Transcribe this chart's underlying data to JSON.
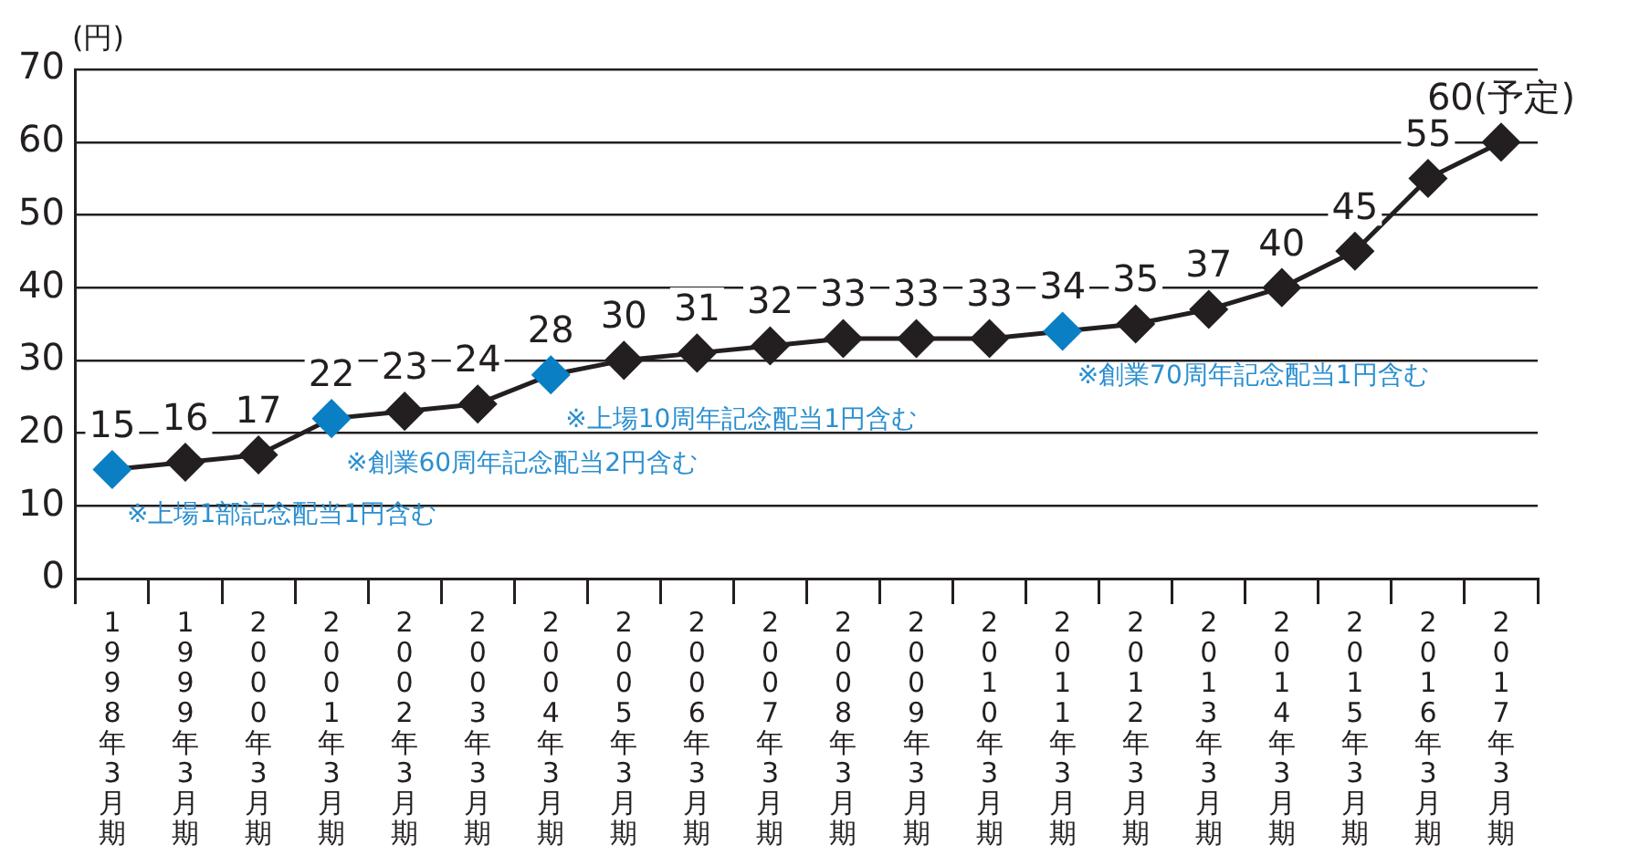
{
  "chart_data": {
    "type": "line",
    "ylabel": "(円)",
    "categories": [
      "1998年3月期",
      "1999年3月期",
      "2000年3月期",
      "2001年3月期",
      "2002年3月期",
      "2003年3月期",
      "2004年3月期",
      "2005年3月期",
      "2006年3月期",
      "2007年3月期",
      "2008年3月期",
      "2009年3月期",
      "2010年3月期",
      "2011年3月期",
      "2012年3月期",
      "2013年3月期",
      "2014年3月期",
      "2015年3月期",
      "2016年3月期",
      "2017年3月期"
    ],
    "series": [
      {
        "color": "#231f20",
        "colors": [
          "#0a7fc4",
          "#231f20",
          "#231f20",
          "#0a7fc4",
          "#231f20",
          "#231f20",
          "#0a7fc4",
          "#231f20",
          "#231f20",
          "#231f20",
          "#231f20",
          "#231f20",
          "#231f20",
          "#0a7fc4",
          "#231f20",
          "#231f20",
          "#231f20",
          "#231f20",
          "#231f20",
          "#231f20"
        ],
        "values": [
          15,
          16,
          17,
          22,
          23,
          24,
          28,
          30,
          31,
          32,
          33,
          33,
          33,
          34,
          35,
          37,
          40,
          45,
          55,
          60
        ],
        "value_labels": [
          "15",
          "16",
          "17",
          "22",
          "23",
          "24",
          "28",
          "30",
          "31",
          "32",
          "33",
          "33",
          "33",
          "34",
          "35",
          "37",
          "40",
          "45",
          "55",
          "60(予定)"
        ]
      }
    ],
    "ylim": [
      0,
      70
    ],
    "yticks": [
      0,
      10,
      20,
      30,
      40,
      50,
      60,
      70
    ],
    "grid": "y",
    "legend": false,
    "marker": "diamond",
    "line_style": "solid",
    "annotations": [
      {
        "text": "※上場1部記念配当1円含む",
        "x": "1998年3月期",
        "y": 15
      },
      {
        "text": "※創業60周年記念配当2円含む",
        "x": "2001年3月期",
        "y": 22
      },
      {
        "text": "※上場10周年記念配当1円含む",
        "x": "2004年3月期",
        "y": 28
      },
      {
        "text": "※創業70周年記念配当1円含む",
        "x": "2011年3月期",
        "y": 34
      }
    ]
  }
}
